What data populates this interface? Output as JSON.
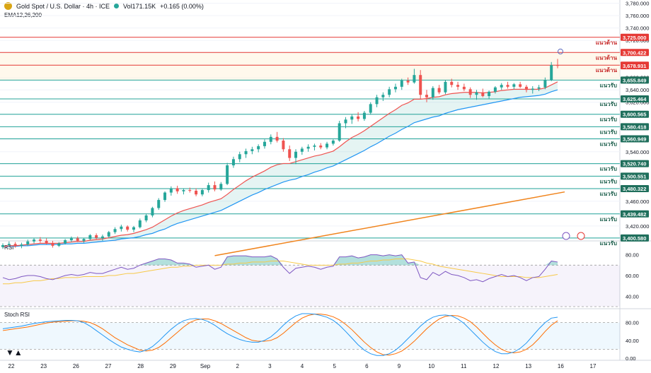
{
  "header": {
    "symbol": "Gold Spot / U.S. Dollar · 4h · ICE",
    "volume": "Vol171.15K",
    "change": "+0.165 (0.00%)",
    "indicator": "EMA12,26,200"
  },
  "rsi_pane": {
    "label": "RSI",
    "ticks": [
      "80.00",
      "60.00",
      "40.00"
    ]
  },
  "stoch_pane": {
    "label": "Stoch RSI",
    "ticks": [
      "80.00",
      "40.00",
      "0.00"
    ]
  },
  "colors": {
    "bull": "#26a69a",
    "bear": "#ef5350",
    "resistance": "#e53935",
    "support": "#26a69a",
    "ema_fast": "#ef5350",
    "ema_slow": "#2196f3",
    "ema_200": "#f0841d",
    "rsi": "#7e57c2",
    "stoch_k": "#2196f3",
    "stoch_d": "#ff6d00"
  },
  "chart_data": {
    "type": "candlestick",
    "title": "Gold Spot / U.S. Dollar · 4h · ICE",
    "timeframe": "4h",
    "y_ticks": [
      "3,780.000",
      "3,760.000",
      "3,740.000",
      "3,720.000",
      "3,700.000",
      "3,680.000",
      "3,660.000",
      "3,640.000",
      "3,620.000",
      "3,600.000",
      "3,580.000",
      "3,560.000",
      "3,540.000",
      "3,520.000",
      "3,500.000",
      "3,480.000",
      "3,460.000",
      "3,440.000",
      "3,420.000",
      "3,400.000"
    ],
    "x_ticks": [
      "22",
      "23",
      "26",
      "27",
      "28",
      "29",
      "Sep",
      "2",
      "3",
      "4",
      "5",
      "6",
      "9",
      "10",
      "11",
      "12",
      "13",
      "16",
      "17"
    ],
    "ylim": [
      3397,
      3783
    ],
    "candles": [
      [
        3386,
        3392,
        3383,
        3389
      ],
      [
        3389,
        3395,
        3386,
        3391
      ],
      [
        3391,
        3394,
        3385,
        3388
      ],
      [
        3388,
        3393,
        3384,
        3390
      ],
      [
        3390,
        3398,
        3388,
        3395
      ],
      [
        3395,
        3401,
        3392,
        3398
      ],
      [
        3398,
        3402,
        3393,
        3396
      ],
      [
        3396,
        3400,
        3390,
        3392
      ],
      [
        3392,
        3396,
        3385,
        3388
      ],
      [
        3388,
        3394,
        3386,
        3392
      ],
      [
        3392,
        3399,
        3390,
        3397
      ],
      [
        3397,
        3403,
        3394,
        3400
      ],
      [
        3400,
        3403,
        3394,
        3396
      ],
      [
        3396,
        3401,
        3393,
        3399
      ],
      [
        3399,
        3407,
        3397,
        3405
      ],
      [
        3405,
        3408,
        3398,
        3401
      ],
      [
        3401,
        3406,
        3396,
        3403
      ],
      [
        3403,
        3412,
        3401,
        3410
      ],
      [
        3410,
        3418,
        3407,
        3415
      ],
      [
        3415,
        3422,
        3411,
        3419
      ],
      [
        3419,
        3421,
        3411,
        3414
      ],
      [
        3414,
        3420,
        3410,
        3418
      ],
      [
        3418,
        3432,
        3416,
        3429
      ],
      [
        3429,
        3440,
        3426,
        3437
      ],
      [
        3437,
        3451,
        3434,
        3449
      ],
      [
        3449,
        3465,
        3446,
        3462
      ],
      [
        3462,
        3476,
        3459,
        3474
      ],
      [
        3474,
        3484,
        3469,
        3481
      ],
      [
        3481,
        3485,
        3472,
        3476
      ],
      [
        3476,
        3481,
        3471,
        3478
      ],
      [
        3478,
        3482,
        3474,
        3477
      ],
      [
        3477,
        3481,
        3468,
        3471
      ],
      [
        3471,
        3480,
        3468,
        3478
      ],
      [
        3478,
        3490,
        3474,
        3486
      ],
      [
        3486,
        3492,
        3476,
        3479
      ],
      [
        3479,
        3491,
        3477,
        3488
      ],
      [
        3488,
        3522,
        3486,
        3518
      ],
      [
        3518,
        3532,
        3514,
        3528
      ],
      [
        3528,
        3540,
        3523,
        3536
      ],
      [
        3536,
        3545,
        3530,
        3541
      ],
      [
        3541,
        3548,
        3536,
        3544
      ],
      [
        3544,
        3552,
        3539,
        3549
      ],
      [
        3549,
        3560,
        3545,
        3556
      ],
      [
        3556,
        3568,
        3552,
        3564
      ],
      [
        3564,
        3572,
        3555,
        3558
      ],
      [
        3558,
        3562,
        3540,
        3544
      ],
      [
        3544,
        3550,
        3525,
        3530
      ],
      [
        3530,
        3544,
        3520,
        3540
      ],
      [
        3540,
        3548,
        3535,
        3545
      ],
      [
        3545,
        3552,
        3540,
        3548
      ],
      [
        3548,
        3553,
        3542,
        3550
      ],
      [
        3550,
        3554,
        3544,
        3547
      ],
      [
        3547,
        3556,
        3544,
        3553
      ],
      [
        3553,
        3560,
        3550,
        3558
      ],
      [
        3558,
        3590,
        3556,
        3586
      ],
      [
        3586,
        3596,
        3578,
        3592
      ],
      [
        3592,
        3600,
        3585,
        3597
      ],
      [
        3597,
        3604,
        3589,
        3593
      ],
      [
        3593,
        3606,
        3590,
        3603
      ],
      [
        3603,
        3620,
        3600,
        3617
      ],
      [
        3617,
        3632,
        3612,
        3628
      ],
      [
        3628,
        3636,
        3622,
        3632
      ],
      [
        3632,
        3645,
        3628,
        3641
      ],
      [
        3641,
        3650,
        3636,
        3645
      ],
      [
        3645,
        3658,
        3640,
        3655
      ],
      [
        3655,
        3660,
        3648,
        3652
      ],
      [
        3652,
        3674,
        3650,
        3664
      ],
      [
        3664,
        3672,
        3626,
        3632
      ],
      [
        3632,
        3640,
        3620,
        3628
      ],
      [
        3628,
        3646,
        3624,
        3643
      ],
      [
        3643,
        3648,
        3633,
        3636
      ],
      [
        3636,
        3656,
        3633,
        3653
      ],
      [
        3653,
        3658,
        3644,
        3648
      ],
      [
        3648,
        3653,
        3640,
        3645
      ],
      [
        3645,
        3650,
        3638,
        3641
      ],
      [
        3641,
        3644,
        3627,
        3632
      ],
      [
        3632,
        3640,
        3624,
        3636
      ],
      [
        3636,
        3642,
        3628,
        3630
      ],
      [
        3630,
        3639,
        3626,
        3637
      ],
      [
        3637,
        3646,
        3634,
        3644
      ],
      [
        3644,
        3651,
        3640,
        3648
      ],
      [
        3648,
        3653,
        3642,
        3645
      ],
      [
        3645,
        3651,
        3641,
        3649
      ],
      [
        3649,
        3653,
        3643,
        3645
      ],
      [
        3645,
        3648,
        3636,
        3640
      ],
      [
        3640,
        3646,
        3634,
        3642
      ],
      [
        3642,
        3648,
        3638,
        3644
      ],
      [
        3644,
        3660,
        3641,
        3656
      ],
      [
        3656,
        3685,
        3654,
        3680
      ],
      [
        3680,
        3690,
        3675,
        3679
      ]
    ],
    "ema12": [
      3386,
      3388,
      3388,
      3389,
      3390,
      3391,
      3392,
      3392,
      3392,
      3392,
      3393,
      3394,
      3395,
      3395,
      3397,
      3398,
      3399,
      3401,
      3403,
      3405,
      3406,
      3408,
      3411,
      3414,
      3418,
      3424,
      3430,
      3436,
      3441,
      3445,
      3448,
      3451,
      3454,
      3458,
      3461,
      3464,
      3471,
      3479,
      3486,
      3493,
      3499,
      3504,
      3509,
      3515,
      3519,
      3521,
      3521,
      3524,
      3527,
      3530,
      3533,
      3535,
      3538,
      3541,
      3548,
      3556,
      3563,
      3568,
      3574,
      3581,
      3588,
      3595,
      3602,
      3608,
      3615,
      3619,
      3625,
      3625,
      3626,
      3628,
      3629,
      3632,
      3634,
      3635,
      3636,
      3636,
      3636,
      3635,
      3636,
      3637,
      3639,
      3640,
      3641,
      3641,
      3641,
      3641,
      3641,
      3643,
      3648,
      3653
    ],
    "ema26": [
      3386,
      3387,
      3387,
      3388,
      3388,
      3389,
      3390,
      3390,
      3390,
      3390,
      3391,
      3391,
      3392,
      3392,
      3393,
      3394,
      3395,
      3396,
      3397,
      3399,
      3400,
      3401,
      3403,
      3406,
      3408,
      3412,
      3415,
      3420,
      3424,
      3427,
      3430,
      3433,
      3436,
      3439,
      3442,
      3445,
      3450,
      3455,
      3460,
      3465,
      3470,
      3474,
      3479,
      3483,
      3487,
      3491,
      3494,
      3496,
      3500,
      3503,
      3507,
      3510,
      3514,
      3517,
      3522,
      3527,
      3532,
      3537,
      3542,
      3548,
      3553,
      3559,
      3565,
      3570,
      3576,
      3581,
      3587,
      3590,
      3593,
      3596,
      3598,
      3602,
      3605,
      3608,
      3610,
      3612,
      3614,
      3616,
      3618,
      3620,
      3622,
      3624,
      3626,
      3628,
      3629,
      3630,
      3631,
      3633,
      3637,
      3640
    ],
    "ema200_range": [
      3372,
      3475
    ],
    "rsi": [
      58,
      56,
      57,
      59,
      60,
      60,
      59,
      57,
      56,
      58,
      60,
      61,
      60,
      61,
      63,
      62,
      62,
      64,
      66,
      68,
      66,
      67,
      70,
      72,
      74,
      76,
      76,
      75,
      72,
      72,
      71,
      68,
      69,
      70,
      66,
      68,
      78,
      79,
      79,
      79,
      78,
      78,
      78,
      79,
      76,
      68,
      62,
      67,
      68,
      69,
      68,
      66,
      68,
      69,
      78,
      78,
      79,
      77,
      78,
      80,
      80,
      79,
      80,
      79,
      80,
      72,
      73,
      58,
      56,
      63,
      60,
      64,
      61,
      60,
      58,
      55,
      56,
      54,
      57,
      59,
      61,
      59,
      60,
      58,
      55,
      58,
      59,
      66,
      74,
      73
    ],
    "rsi_ma": [
      52,
      52,
      53,
      53,
      54,
      55,
      55,
      56,
      57,
      57,
      58,
      58,
      58,
      59,
      59,
      59,
      59,
      60,
      60,
      61,
      62,
      62,
      63,
      64,
      65,
      66,
      67,
      68,
      68,
      69,
      69,
      70,
      70,
      70,
      70,
      70,
      71,
      71,
      72,
      72,
      73,
      73,
      73,
      74,
      74,
      74,
      73,
      72,
      71,
      70,
      70,
      70,
      70,
      70,
      71,
      71,
      72,
      72,
      73,
      74,
      74,
      75,
      75,
      76,
      76,
      76,
      75,
      74,
      72,
      71,
      69,
      68,
      67,
      66,
      65,
      64,
      63,
      62,
      61,
      60,
      59,
      59,
      59,
      59,
      58,
      58,
      58,
      59,
      60,
      61
    ],
    "stoch_k": [
      66,
      68,
      70,
      72,
      75,
      78,
      80,
      82,
      83,
      84,
      85,
      85,
      84,
      80,
      72,
      62,
      52,
      42,
      33,
      25,
      20,
      16,
      14,
      18,
      26,
      38,
      52,
      65,
      76,
      84,
      88,
      89,
      87,
      82,
      74,
      64,
      55,
      48,
      42,
      38,
      36,
      36,
      40,
      48,
      60,
      74,
      86,
      95,
      100,
      100,
      99,
      96,
      92,
      85,
      74,
      60,
      45,
      30,
      18,
      10,
      6,
      6,
      10,
      18,
      30,
      44,
      58,
      72,
      84,
      92,
      96,
      97,
      95,
      88,
      78,
      64,
      50,
      36,
      24,
      15,
      10,
      10,
      14,
      22,
      34,
      50,
      66,
      80,
      90,
      92
    ],
    "stoch_d": [
      62,
      64,
      66,
      68,
      70,
      73,
      76,
      79,
      81,
      82,
      83,
      84,
      84,
      83,
      80,
      74,
      66,
      56,
      46,
      38,
      30,
      24,
      18,
      16,
      18,
      24,
      34,
      46,
      58,
      70,
      80,
      86,
      88,
      88,
      84,
      78,
      70,
      62,
      54,
      46,
      40,
      38,
      38,
      40,
      46,
      56,
      68,
      80,
      90,
      96,
      99,
      99,
      97,
      93,
      86,
      76,
      64,
      50,
      36,
      24,
      14,
      8,
      7,
      10,
      16,
      26,
      38,
      52,
      66,
      78,
      88,
      94,
      96,
      95,
      90,
      82,
      70,
      56,
      42,
      30,
      20,
      14,
      12,
      14,
      20,
      30,
      44,
      60,
      74,
      84
    ]
  },
  "levels": [
    {
      "price": "3,725.000",
      "tag": "แนวต้าน",
      "kind": "resistance",
      "value": 3725.0
    },
    {
      "price": "3,700.422",
      "tag": "แนวต้าน",
      "kind": "resistance",
      "value": 3700.422
    },
    {
      "price": "3,680.000",
      "tag": "แนวต้าน",
      "kind": "resistance",
      "value": 3680.0
    },
    {
      "price": "3,678.931",
      "tag": "",
      "kind": "current",
      "value": 3678.931
    },
    {
      "price": "3,655.849",
      "tag": "แนวรับ",
      "kind": "support",
      "value": 3655.849
    },
    {
      "price": "3,625.464",
      "tag": "แนวรับ",
      "kind": "support",
      "value": 3625.464
    },
    {
      "price": "3,600.565",
      "tag": "แนวรับ",
      "kind": "support",
      "value": 3600.565
    },
    {
      "price": "3,580.418",
      "tag": "แนวรับ",
      "kind": "support",
      "value": 3580.418
    },
    {
      "price": "3,560.949",
      "tag": "แนวรับ",
      "kind": "support",
      "value": 3560.949
    },
    {
      "price": "3,520.740",
      "tag": "แนวรับ",
      "kind": "support",
      "value": 3520.74
    },
    {
      "price": "3,500.551",
      "tag": "แนวรับ",
      "kind": "support",
      "value": 3500.551
    },
    {
      "price": "3,480.322",
      "tag": "แนวรับ",
      "kind": "support",
      "value": 3480.322
    },
    {
      "price": "3,439.482",
      "tag": "แนวรับ",
      "kind": "support",
      "value": 3439.482
    },
    {
      "price": "3,400.580",
      "tag": "แนวรับ",
      "kind": "support",
      "value": 3400.58
    }
  ]
}
